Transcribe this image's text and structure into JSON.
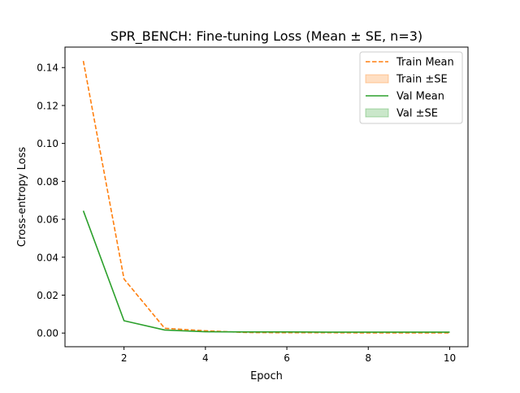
{
  "chart_data": {
    "type": "line",
    "title": "SPR_BENCH: Fine-tuning Loss (Mean ± SE, n=3)",
    "xlabel": "Epoch",
    "ylabel": "Cross-entropy Loss",
    "xlim": [
      0.55,
      10.45
    ],
    "ylim": [
      -0.0072,
      0.1508
    ],
    "xticks": [
      2,
      4,
      6,
      8,
      10
    ],
    "xtick_labels": [
      "2",
      "4",
      "6",
      "8",
      "10"
    ],
    "yticks": [
      0.0,
      0.02,
      0.04,
      0.06,
      0.08,
      0.1,
      0.12,
      0.14
    ],
    "ytick_labels": [
      "0.00",
      "0.02",
      "0.04",
      "0.06",
      "0.08",
      "0.10",
      "0.12",
      "0.14"
    ],
    "grid": false,
    "legend_position": "top-right",
    "x": [
      1,
      2,
      3,
      4,
      5,
      6,
      7,
      8,
      9,
      10
    ],
    "series": [
      {
        "name": "Train Mean",
        "color": "#ff7f0e",
        "style": "dashed",
        "values": [
          0.1435,
          0.0285,
          0.0025,
          0.0012,
          0.0003,
          0.0002,
          0.0002,
          0.0001,
          0.0001,
          0.0001
        ]
      },
      {
        "name": "Val Mean",
        "color": "#2ca02c",
        "style": "solid",
        "values": [
          0.0645,
          0.0065,
          0.0016,
          0.0007,
          0.0006,
          0.0006,
          0.0005,
          0.0005,
          0.0005,
          0.0005
        ]
      }
    ],
    "bands": [
      {
        "name": "Train ±SE",
        "color": "#ff7f0e",
        "opacity": 0.25
      },
      {
        "name": "Val ±SE",
        "color": "#2ca02c",
        "opacity": 0.25
      }
    ]
  }
}
